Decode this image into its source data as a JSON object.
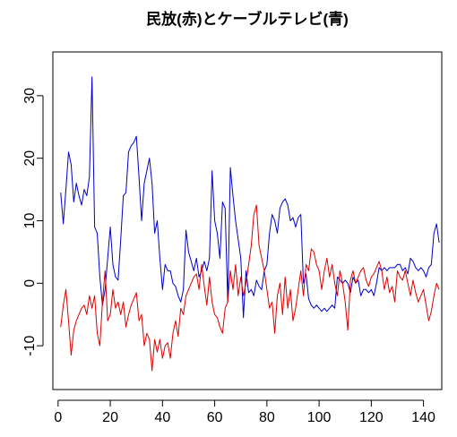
{
  "chart_data": {
    "type": "line",
    "title": "民放(赤)とケーブルテレビ(青)",
    "xlabel": "",
    "ylabel": "",
    "xlim": [
      -2,
      147
    ],
    "ylim": [
      -17,
      37
    ],
    "x_ticks": [
      0,
      20,
      40,
      60,
      80,
      100,
      120,
      140
    ],
    "y_ticks": [
      -10,
      0,
      10,
      20,
      30
    ],
    "grid": false,
    "legend": "none",
    "series": [
      {
        "color": "#0000cc",
        "x_start": 1,
        "values": [
          14.5,
          9.5,
          15.0,
          21.0,
          19.0,
          13.0,
          16.0,
          14.0,
          12.5,
          15.0,
          14.0,
          17.0,
          33.0,
          9.0,
          8.0,
          1.0,
          -3.5,
          -1.0,
          4.0,
          9.0,
          3.0,
          1.0,
          0.5,
          7.0,
          14.0,
          14.5,
          21.0,
          22.0,
          22.5,
          23.5,
          17.0,
          10.0,
          16.0,
          18.0,
          20.0,
          16.0,
          8.0,
          10.0,
          4.0,
          -1.0,
          3.0,
          2.0,
          2.0,
          0.0,
          -0.5,
          -2.0,
          -3.0,
          -1.0,
          8.5,
          5.0,
          3.5,
          2.0,
          4.0,
          1.0,
          2.0,
          3.5,
          2.0,
          4.0,
          18.0,
          10.0,
          8.0,
          4.0,
          13.0,
          12.0,
          -3.0,
          18.5,
          14.0,
          10.0,
          7.0,
          4.0,
          -5.5,
          2.0,
          -1.5,
          -1.0,
          -2.0,
          0.5,
          -0.5,
          -1.0,
          2.0,
          3.0,
          8.0,
          11.0,
          10.0,
          8.0,
          12.0,
          13.0,
          13.5,
          12.5,
          10.0,
          10.5,
          9.0,
          10.5,
          11.0,
          0.0,
          1.5,
          -2.5,
          -3.5,
          -4.0,
          -3.5,
          -4.0,
          -4.5,
          -4.0,
          -4.5,
          -4.0,
          -3.5,
          -4.0,
          1.0,
          0.5,
          0.0,
          0.5,
          0.0,
          -1.5,
          1.0,
          0.0,
          0.5,
          -2.0,
          -1.0,
          -1.0,
          -1.5,
          -1.0,
          -2.0,
          0.0,
          2.5,
          2.0,
          2.5,
          2.0,
          2.5,
          2.5,
          2.5,
          3.0,
          3.0,
          2.0,
          2.5,
          1.5,
          4.0,
          3.5,
          2.5,
          2.0,
          2.5,
          2.0,
          1.0,
          2.5,
          3.0,
          8.0,
          9.5,
          6.5
        ]
      },
      {
        "color": "#dd0000",
        "x_start": 1,
        "values": [
          -7.0,
          -3.5,
          -1.0,
          -6.0,
          -11.5,
          -7.5,
          -6.0,
          -5.0,
          -4.0,
          -3.5,
          -5.0,
          -2.0,
          -4.0,
          -2.0,
          -8.0,
          -10.0,
          -3.0,
          2.0,
          -6.0,
          -5.0,
          -1.0,
          -4.0,
          -3.0,
          -5.0,
          -3.0,
          -7.0,
          -5.0,
          -3.5,
          -2.5,
          -1.5,
          -6.0,
          -5.0,
          -10.0,
          -8.0,
          -9.0,
          -14.0,
          -9.0,
          -11.0,
          -9.0,
          -12.0,
          -10.0,
          -9.5,
          -12.0,
          -8.0,
          -6.0,
          -8.5,
          -4.0,
          -5.0,
          -2.0,
          -1.0,
          0.0,
          1.0,
          1.5,
          -1.0,
          3.0,
          -0.5,
          -3.5,
          1.0,
          -3.0,
          -5.0,
          -5.5,
          -7.0,
          -8.0,
          -4.0,
          -3.0,
          2.0,
          -1.0,
          3.0,
          -2.0,
          1.0,
          -2.0,
          0.0,
          3.0,
          6.0,
          11.0,
          12.5,
          6.0,
          4.0,
          2.0,
          -1.0,
          -4.0,
          -3.0,
          -8.0,
          -2.0,
          0.0,
          -5.0,
          1.0,
          -4.0,
          -1.0,
          -6.0,
          -4.0,
          -1.0,
          2.0,
          -2.0,
          3.0,
          2.0,
          5.5,
          5.0,
          3.0,
          2.0,
          -1.0,
          2.0,
          4.0,
          1.0,
          3.0,
          0.0,
          -2.0,
          2.0,
          0.0,
          -3.0,
          -7.5,
          0.5,
          2.0,
          0.0,
          1.0,
          2.0,
          2.5,
          0.5,
          -0.5,
          1.0,
          1.5,
          2.5,
          3.5,
          2.0,
          -1.0,
          1.0,
          -1.5,
          -0.5,
          -3.0,
          2.0,
          1.0,
          0.5,
          2.0,
          0.0,
          -2.0,
          0.5,
          -1.5,
          -3.0,
          -2.0,
          -1.0,
          -3.5,
          -6.0,
          -4.5,
          -2.0,
          0.0,
          -1.0
        ]
      }
    ]
  }
}
